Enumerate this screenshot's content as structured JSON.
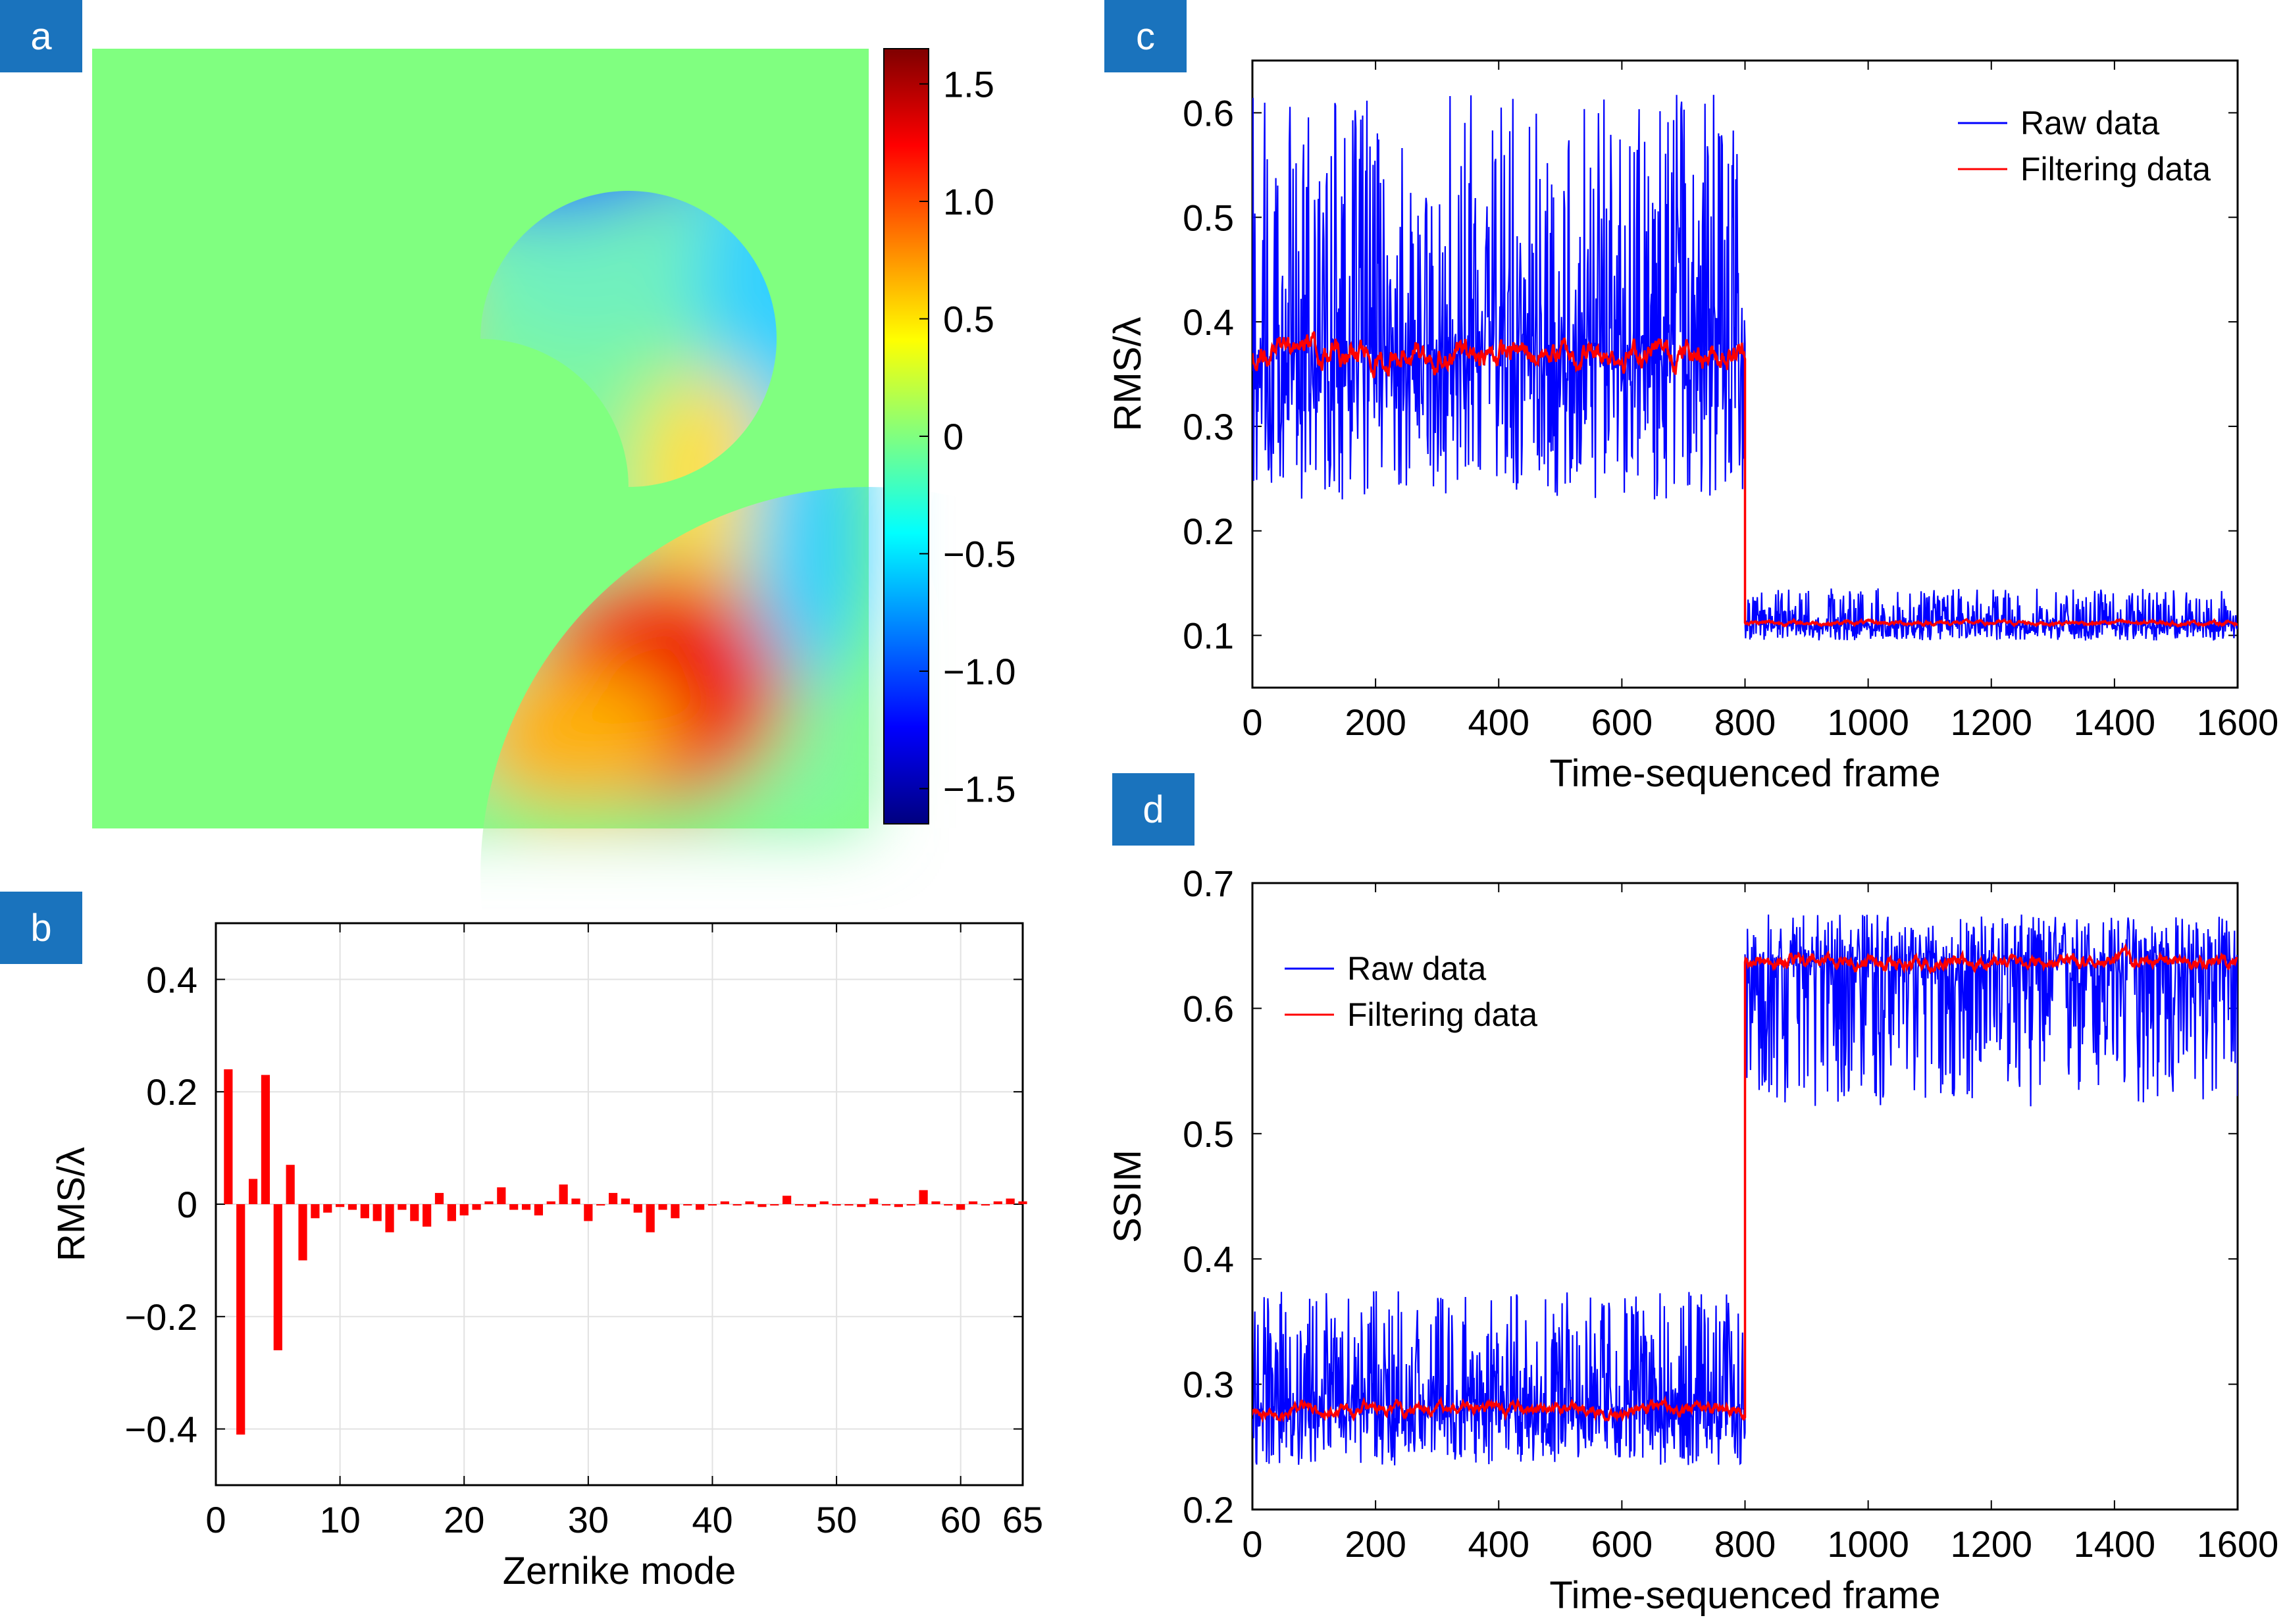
{
  "panels": {
    "a": {
      "tag": "a"
    },
    "b": {
      "tag": "b"
    },
    "c": {
      "tag": "c"
    },
    "d": {
      "tag": "d"
    }
  },
  "chart_data": [
    {
      "panel": "a",
      "type": "heatmap",
      "description_kind": "annular wavefront phase map",
      "colorbar": {
        "range": [
          -1.65,
          1.65
        ],
        "ticks": [
          1.5,
          1.0,
          0.5,
          0,
          -0.5,
          -1.0,
          -1.5
        ],
        "tick_labels": [
          "1.5",
          "1.0",
          "0.5",
          "0",
          "−0.5",
          "−1.0",
          "−1.5"
        ],
        "colormap": [
          "#00007f",
          "#0000ff",
          "#0080ff",
          "#00ffff",
          "#80ff80",
          "#ffff00",
          "#ff8000",
          "#ff0000",
          "#7f0000"
        ]
      },
      "background_color": "#80ff80"
    },
    {
      "panel": "b",
      "type": "bar",
      "xlabel": "Zernike mode",
      "ylabel": "RMS/λ",
      "xlim": [
        0,
        65
      ],
      "ylim": [
        -0.5,
        0.5
      ],
      "xticks": [
        0,
        10,
        20,
        30,
        40,
        50,
        60,
        65
      ],
      "xtick_labels": [
        "0",
        "10",
        "20",
        "30",
        "40",
        "50",
        "60",
        "65"
      ],
      "yticks": [
        0.4,
        0.2,
        0,
        -0.2,
        -0.4
      ],
      "ytick_labels": [
        "0.4",
        "0.2",
        "0",
        "−0.2",
        "−0.4"
      ],
      "grid": true,
      "bar_color": "#ff0000",
      "x": [
        1,
        2,
        3,
        4,
        5,
        6,
        7,
        8,
        9,
        10,
        11,
        12,
        13,
        14,
        15,
        16,
        17,
        18,
        19,
        20,
        21,
        22,
        23,
        24,
        25,
        26,
        27,
        28,
        29,
        30,
        31,
        32,
        33,
        34,
        35,
        36,
        37,
        38,
        39,
        40,
        41,
        42,
        43,
        44,
        45,
        46,
        47,
        48,
        49,
        50,
        51,
        52,
        53,
        54,
        55,
        56,
        57,
        58,
        59,
        60,
        61,
        62,
        63,
        64,
        65
      ],
      "values": [
        0.24,
        -0.41,
        0.045,
        0.23,
        -0.26,
        0.07,
        -0.1,
        -0.025,
        -0.015,
        -0.005,
        -0.01,
        -0.025,
        -0.03,
        -0.05,
        -0.01,
        -0.03,
        -0.04,
        0.02,
        -0.03,
        -0.02,
        -0.01,
        0.005,
        0.03,
        -0.01,
        -0.01,
        -0.02,
        0.005,
        0.035,
        0.01,
        -0.03,
        0.0,
        0.02,
        0.01,
        -0.015,
        -0.05,
        -0.01,
        -0.025,
        0.0,
        -0.01,
        0.0,
        0.005,
        0.0,
        0.005,
        -0.005,
        0.0,
        0.015,
        0.0,
        -0.005,
        0.005,
        0.0,
        0.0,
        -0.005,
        0.01,
        0.0,
        -0.005,
        0.0,
        0.025,
        0.005,
        0.0,
        -0.01,
        0.005,
        0.0,
        0.005,
        0.01,
        0.005
      ]
    },
    {
      "panel": "c",
      "type": "line",
      "xlabel": "Time-sequenced frame",
      "ylabel": "RMS/λ",
      "xlim": [
        0,
        1600
      ],
      "ylim": [
        0.05,
        0.65
      ],
      "xticks": [
        0,
        200,
        400,
        600,
        800,
        1000,
        1200,
        1400,
        1600
      ],
      "xtick_labels": [
        "0",
        "200",
        "400",
        "600",
        "800",
        "1000",
        "1200",
        "1400",
        "1600"
      ],
      "yticks": [
        0.6,
        0.5,
        0.4,
        0.3,
        0.2,
        0.1
      ],
      "ytick_labels": [
        "0.6",
        "0.5",
        "0.4",
        "0.3",
        "0.2",
        "0.1"
      ],
      "legend_position": "top-right",
      "series": [
        {
          "name": "Raw data",
          "color": "#0000ff",
          "segments": [
            {
              "x_range": [
                0,
                800
              ],
              "mean": 0.37,
              "spread_low": 0.23,
              "spread_high": 0.62
            },
            {
              "x_range": [
                800,
                1600
              ],
              "mean": 0.11,
              "spread_low": 0.095,
              "spread_high": 0.145
            }
          ]
        },
        {
          "name": "Filtering data",
          "color": "#ff0000",
          "segments": [
            {
              "x_range": [
                0,
                800
              ],
              "mean": 0.37,
              "spread_low": 0.33,
              "spread_high": 0.42
            },
            {
              "x_range": [
                800,
                1600
              ],
              "mean": 0.112,
              "spread_low": 0.105,
              "spread_high": 0.12
            }
          ]
        }
      ]
    },
    {
      "panel": "d",
      "type": "line",
      "xlabel": "Time-sequenced frame",
      "ylabel": "SSIM",
      "xlim": [
        0,
        1600
      ],
      "ylim": [
        0.2,
        0.7
      ],
      "xticks": [
        0,
        200,
        400,
        600,
        800,
        1000,
        1200,
        1400,
        1600
      ],
      "xtick_labels": [
        "0",
        "200",
        "400",
        "600",
        "800",
        "1000",
        "1200",
        "1400",
        "1600"
      ],
      "yticks": [
        0.7,
        0.6,
        0.5,
        0.4,
        0.3,
        0.2
      ],
      "ytick_labels": [
        "0.7",
        "0.6",
        "0.5",
        "0.4",
        "0.3",
        "0.2"
      ],
      "legend_position": "top-left",
      "series": [
        {
          "name": "Raw data",
          "color": "#0000ff",
          "segments": [
            {
              "x_range": [
                0,
                800
              ],
              "mean": 0.28,
              "spread_low": 0.235,
              "spread_high": 0.375
            },
            {
              "x_range": [
                800,
                1600
              ],
              "mean": 0.635,
              "spread_low": 0.52,
              "spread_high": 0.675
            }
          ]
        },
        {
          "name": "Filtering data",
          "color": "#ff0000",
          "segments": [
            {
              "x_range": [
                0,
                800
              ],
              "mean": 0.28,
              "spread_low": 0.265,
              "spread_high": 0.3
            },
            {
              "x_range": [
                800,
                1600
              ],
              "mean": 0.637,
              "spread_low": 0.615,
              "spread_high": 0.655
            }
          ]
        }
      ]
    }
  ]
}
